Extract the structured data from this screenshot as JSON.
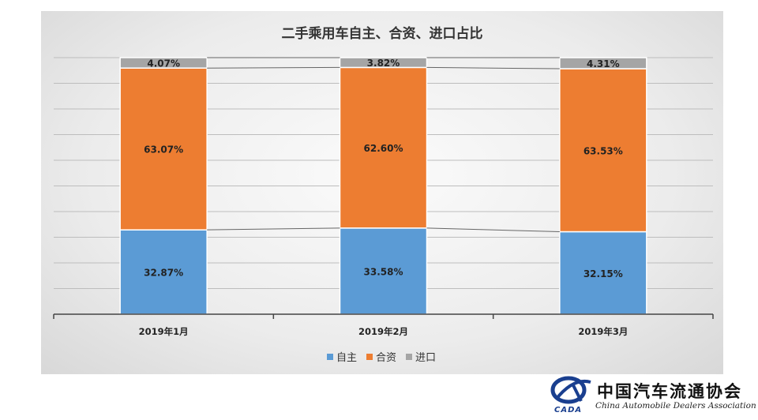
{
  "chart_data": {
    "type": "bar",
    "stacked": true,
    "title": "二手乘用车自主、合资、进口占比",
    "categories": [
      "2019年1月",
      "2019年2月",
      "2019年3月"
    ],
    "series": [
      {
        "name": "自主",
        "color": "#5b9bd5",
        "values": [
          32.87,
          33.58,
          32.15
        ],
        "labels": [
          "32.87%",
          "33.58%",
          "32.15%"
        ]
      },
      {
        "name": "合资",
        "color": "#ed7d31",
        "values": [
          63.07,
          62.6,
          63.53
        ],
        "labels": [
          "63.07%",
          "62.60%",
          "63.53%"
        ]
      },
      {
        "name": "进口",
        "color": "#a5a5a5",
        "values": [
          4.07,
          3.82,
          4.31
        ],
        "labels": [
          "4.07%",
          "3.82%",
          "4.31%"
        ]
      }
    ],
    "ylim": [
      0,
      100
    ],
    "grid": true,
    "series_lines": true,
    "legend_position": "bottom"
  },
  "watermark": {
    "name_cn": "中国汽车流通协会",
    "name_en": "China Automobile Dealers Association",
    "abbr": "CADA"
  }
}
